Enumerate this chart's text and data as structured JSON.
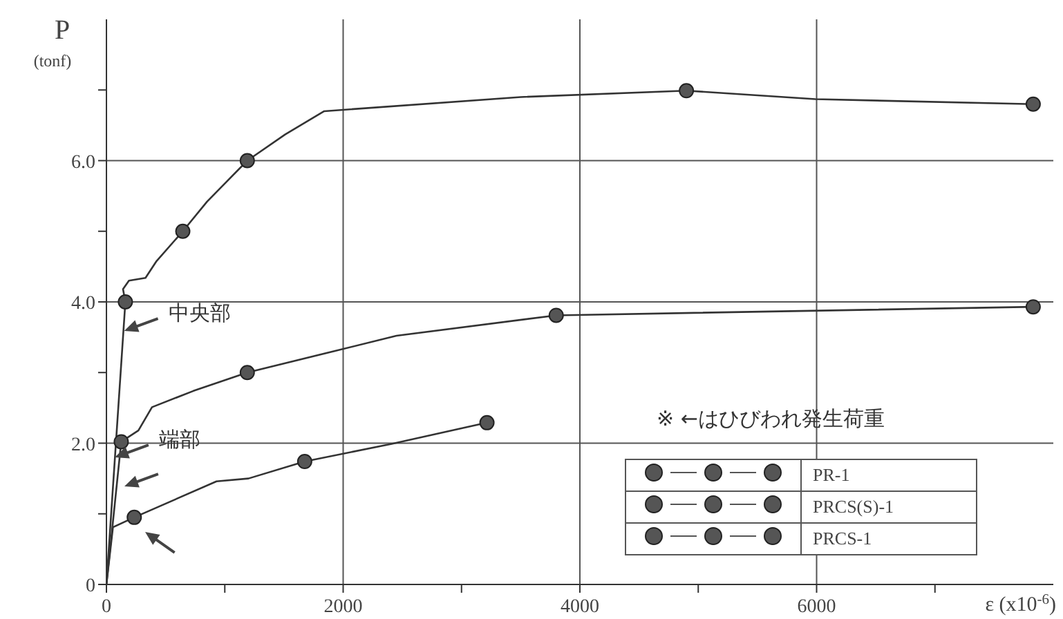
{
  "chart_data": {
    "type": "line",
    "ylabel": "P\n(tonf)",
    "xlabel": "ε (x10$^{-6}$)",
    "xlim": [
      0,
      8000
    ],
    "xticks": [
      0,
      {
        "value": 1000,
        "label": null
      },
      2000,
      {
        "value": 3000,
        "label": null
      },
      4000,
      {
        "value": 5000,
        "label": null
      },
      6000,
      {
        "value": 7000,
        "label": null
      }
    ],
    "ylim": [
      0,
      8
    ],
    "yticks": [
      0,
      {
        "value": 1,
        "label": null
      },
      {
        "value": 2,
        "label": "2.0"
      },
      {
        "value": 3,
        "label": null
      },
      {
        "value": 4,
        "label": "4.0"
      },
      {
        "value": 5,
        "label": null
      },
      {
        "value": 6,
        "label": "6.0"
      },
      {
        "value": 7,
        "label": null
      }
    ],
    "grid": true,
    "legend": "bottom right",
    "line_style": "solid",
    "series": [
      {
        "marker": "none",
        "color": "#333333",
        "x": [
          0,
          55,
          235,
          930,
          1200,
          1675,
          2410,
          3215
        ],
        "values": [
          0,
          0.81,
          0.95,
          1.46,
          1.5,
          1.74,
          1.99,
          2.29
        ]
      },
      {
        "marker": "none",
        "color": "#333333",
        "x": [
          0,
          125,
          270,
          385,
          735,
          1190,
          2450,
          3800,
          7830
        ],
        "values": [
          0,
          2.02,
          2.18,
          2.51,
          2.74,
          3.0,
          3.52,
          3.81,
          3.93
        ]
      },
      {
        "marker": "none",
        "color": "#333333",
        "x": [
          0,
          160,
          140,
          190,
          330,
          420,
          645,
          850,
          1190,
          1510,
          1840,
          3500,
          4900,
          5990,
          7830
        ],
        "values": [
          0,
          4.0,
          4.18,
          4.3,
          4.34,
          4.57,
          5.0,
          5.42,
          6.0,
          6.37,
          6.7,
          6.9,
          6.99,
          6.87,
          6.8
        ]
      },
      {
        "type": "scatter",
        "name": "PR-1",
        "marker": "circle",
        "color": "#555555",
        "x": [
          235,
          1675,
          3215
        ],
        "values": [
          0.95,
          1.74,
          2.29
        ]
      },
      {
        "type": "scatter",
        "name": "PRCS(S)-1",
        "marker": "circle",
        "color": "#555555",
        "x": [
          125,
          1190,
          3800,
          7830
        ],
        "values": [
          2.02,
          3.0,
          3.81,
          3.93
        ]
      },
      {
        "type": "scatter",
        "name": "PRCS-1",
        "marker": "circle",
        "color": "#555555",
        "x": [
          160,
          645,
          1190,
          4900,
          7830
        ],
        "values": [
          4.0,
          5.0,
          6.0,
          6.99,
          6.8
        ]
      }
    ],
    "annotations": [
      {
        "text": "中央部",
        "x": 150,
        "y": 3.59
      },
      {
        "text": "端部",
        "x": 70,
        "y": 1.8
      },
      "※ ←はひびわれ発生荷重"
    ]
  }
}
